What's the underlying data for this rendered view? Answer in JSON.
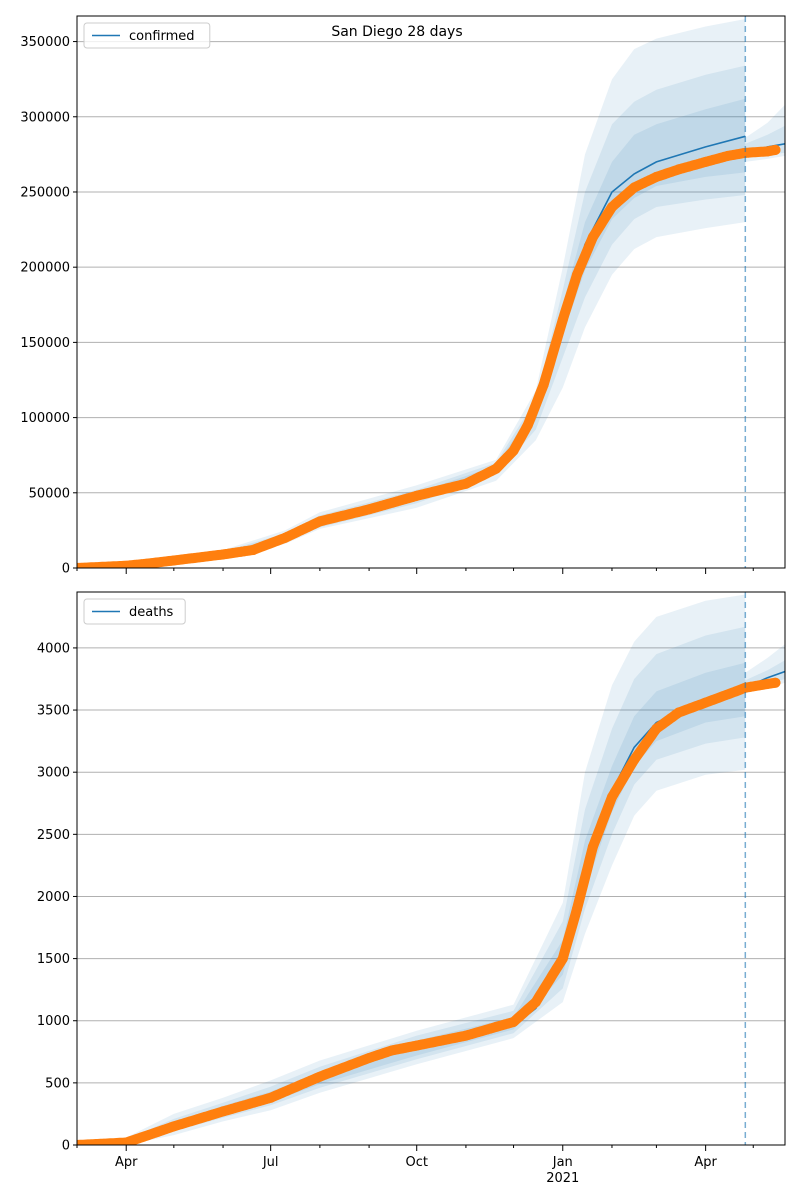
{
  "title": "San Diego 28 days",
  "colors": {
    "model": "#1f77b4",
    "observed": "#ff7f0e",
    "band": "#1f77b4",
    "grid": "#b0b0b0"
  },
  "chart_data": [
    {
      "type": "line",
      "legend": "confirmed",
      "legend_position": "top-left",
      "grid": "y",
      "x_range": [
        "2020-03-01",
        "2021-05-21"
      ],
      "x_ticks": [
        {
          "date": "2020-04-01",
          "label": "Apr"
        },
        {
          "date": "2020-07-01",
          "label": "Jul"
        },
        {
          "date": "2020-10-01",
          "label": "Oct"
        },
        {
          "date": "2021-01-01",
          "label": "Jan"
        },
        {
          "date": "2021-04-01",
          "label": "Apr"
        }
      ],
      "x_ticks_shown": false,
      "forecast_start": "2021-04-26",
      "ylim": [
        0,
        367000
      ],
      "yticks": [
        0,
        50000,
        100000,
        150000,
        200000,
        250000,
        300000,
        350000
      ],
      "model": {
        "x": [
          "2020-03-01",
          "2020-04-01",
          "2020-05-01",
          "2020-06-01",
          "2020-06-20",
          "2020-07-10",
          "2020-08-01",
          "2020-09-01",
          "2020-10-01",
          "2020-11-01",
          "2020-11-20",
          "2020-12-01",
          "2020-12-15",
          "2021-01-01",
          "2021-01-15",
          "2021-02-01",
          "2021-02-15",
          "2021-03-01",
          "2021-04-01",
          "2021-04-26"
        ],
        "y": [
          0,
          1500,
          5000,
          9000,
          12000,
          20000,
          31000,
          40000,
          48000,
          57000,
          67000,
          80000,
          105000,
          165000,
          215000,
          250000,
          262000,
          270000,
          280000,
          287000
        ]
      },
      "forecast": {
        "x": [
          "2021-04-26",
          "2021-05-10",
          "2021-05-21"
        ],
        "y": [
          276000,
          280000,
          282000
        ]
      },
      "bands": [
        {
          "x": [
            "2020-03-01",
            "2020-06-01",
            "2020-07-10",
            "2020-08-01",
            "2020-10-01",
            "2020-11-20",
            "2020-12-15",
            "2021-01-01",
            "2021-01-15",
            "2021-02-01",
            "2021-02-15",
            "2021-03-01",
            "2021-04-01",
            "2021-04-26"
          ],
          "upper": [
            500,
            12000,
            25000,
            37000,
            55000,
            72000,
            118000,
            200000,
            275000,
            325000,
            345000,
            352000,
            360000,
            365000
          ],
          "lower": [
            0,
            6000,
            16000,
            26000,
            40000,
            58000,
            85000,
            120000,
            160000,
            195000,
            212000,
            220000,
            226000,
            230000
          ]
        },
        {
          "x": [
            "2020-03-01",
            "2020-06-01",
            "2020-07-10",
            "2020-08-01",
            "2020-10-01",
            "2020-11-20",
            "2020-12-15",
            "2021-01-01",
            "2021-01-15",
            "2021-02-01",
            "2021-02-15",
            "2021-03-01",
            "2021-04-01",
            "2021-04-26"
          ],
          "upper": [
            300,
            11000,
            23000,
            35000,
            52000,
            70000,
            112000,
            185000,
            250000,
            295000,
            310000,
            318000,
            328000,
            334000
          ],
          "lower": [
            0,
            7000,
            17000,
            27000,
            43000,
            62000,
            92000,
            140000,
            180000,
            215000,
            232000,
            240000,
            245000,
            248000
          ]
        },
        {
          "x": [
            "2020-03-01",
            "2020-06-01",
            "2020-07-10",
            "2020-08-01",
            "2020-10-01",
            "2020-11-20",
            "2020-12-15",
            "2021-01-01",
            "2021-01-15",
            "2021-02-01",
            "2021-02-15",
            "2021-03-01",
            "2021-04-01",
            "2021-04-26"
          ],
          "upper": [
            200,
            10000,
            22000,
            33000,
            50000,
            68000,
            108000,
            175000,
            230000,
            270000,
            288000,
            295000,
            305000,
            312000
          ],
          "lower": [
            0,
            8000,
            18000,
            29000,
            45000,
            64000,
            98000,
            155000,
            198000,
            232000,
            246000,
            254000,
            260000,
            263000
          ]
        }
      ],
      "forecast_bands": [
        {
          "x": [
            "2021-04-26",
            "2021-05-10",
            "2021-05-21"
          ],
          "upper": [
            286000,
            296000,
            308000
          ],
          "lower": [
            270000,
            272000,
            274000
          ]
        },
        {
          "x": [
            "2021-04-26",
            "2021-05-10",
            "2021-05-21"
          ],
          "upper": [
            282000,
            288000,
            294000
          ],
          "lower": [
            273000,
            275000,
            276000
          ]
        }
      ],
      "observed": {
        "x": [
          "2020-03-01",
          "2020-04-01",
          "2020-04-15",
          "2020-05-01",
          "2020-06-01",
          "2020-06-20",
          "2020-07-10",
          "2020-08-01",
          "2020-09-01",
          "2020-10-01",
          "2020-11-01",
          "2020-11-20",
          "2020-12-01",
          "2020-12-10",
          "2020-12-20",
          "2021-01-01",
          "2021-01-10",
          "2021-01-20",
          "2021-02-01",
          "2021-02-15",
          "2021-03-01",
          "2021-03-15",
          "2021-04-01",
          "2021-04-15",
          "2021-04-26",
          "2021-05-10",
          "2021-05-15"
        ],
        "y": [
          0,
          1500,
          3000,
          5000,
          9000,
          12000,
          20000,
          31000,
          39000,
          48000,
          56000,
          66000,
          78000,
          95000,
          122000,
          165000,
          195000,
          220000,
          240000,
          253000,
          260000,
          265000,
          270000,
          274000,
          276000,
          277000,
          278000
        ]
      }
    },
    {
      "type": "line",
      "legend": "deaths",
      "legend_position": "top-left",
      "grid": "y",
      "x_range": [
        "2020-03-01",
        "2021-05-21"
      ],
      "x_ticks": [
        {
          "date": "2020-04-01",
          "label": "Apr"
        },
        {
          "date": "2020-07-01",
          "label": "Jul"
        },
        {
          "date": "2020-10-01",
          "label": "Oct"
        },
        {
          "date": "2021-01-01",
          "label": "Jan"
        },
        {
          "date": "2021-04-01",
          "label": "Apr"
        }
      ],
      "x_ticks_shown": true,
      "year_label": {
        "date": "2021-01-01",
        "label": "2021"
      },
      "forecast_start": "2021-04-26",
      "ylim": [
        0,
        4450
      ],
      "yticks": [
        0,
        500,
        1000,
        1500,
        2000,
        2500,
        3000,
        3500,
        4000
      ],
      "model": {
        "x": [
          "2020-03-01",
          "2020-04-01",
          "2020-05-01",
          "2020-06-01",
          "2020-07-01",
          "2020-08-01",
          "2020-09-01",
          "2020-10-01",
          "2020-11-01",
          "2020-12-01",
          "2020-12-15",
          "2021-01-01",
          "2021-01-15",
          "2021-02-01",
          "2021-02-15",
          "2021-03-01",
          "2021-04-01",
          "2021-04-26"
        ],
        "y": [
          0,
          20,
          150,
          280,
          380,
          530,
          680,
          780,
          870,
          960,
          1100,
          1500,
          2200,
          2850,
          3200,
          3400,
          3580,
          3680
        ]
      },
      "forecast": {
        "x": [
          "2021-04-26",
          "2021-05-10",
          "2021-05-21"
        ],
        "y": [
          3680,
          3760,
          3810
        ]
      },
      "bands": [
        {
          "x": [
            "2020-03-01",
            "2020-04-01",
            "2020-05-01",
            "2020-06-01",
            "2020-07-01",
            "2020-08-01",
            "2020-10-01",
            "2020-12-01",
            "2021-01-01",
            "2021-01-15",
            "2021-02-01",
            "2021-02-15",
            "2021-03-01",
            "2021-04-01",
            "2021-04-26"
          ],
          "upper": [
            20,
            60,
            250,
            380,
            520,
            680,
            920,
            1130,
            1950,
            3000,
            3700,
            4050,
            4250,
            4380,
            4430
          ],
          "lower": [
            0,
            0,
            80,
            190,
            280,
            420,
            650,
            860,
            1150,
            1700,
            2250,
            2650,
            2850,
            2980,
            3020
          ]
        },
        {
          "x": [
            "2020-03-01",
            "2020-04-01",
            "2020-05-01",
            "2020-06-01",
            "2020-07-01",
            "2020-08-01",
            "2020-10-01",
            "2020-12-01",
            "2021-01-01",
            "2021-01-15",
            "2021-02-01",
            "2021-02-15",
            "2021-03-01",
            "2021-04-01",
            "2021-04-26"
          ],
          "upper": [
            10,
            45,
            210,
            340,
            470,
            630,
            880,
            1080,
            1800,
            2700,
            3350,
            3750,
            3950,
            4100,
            4170
          ],
          "lower": [
            0,
            5,
            110,
            220,
            320,
            460,
            690,
            900,
            1260,
            1900,
            2500,
            2900,
            3100,
            3230,
            3280
          ]
        },
        {
          "x": [
            "2020-03-01",
            "2020-04-01",
            "2020-05-01",
            "2020-06-01",
            "2020-07-01",
            "2020-08-01",
            "2020-10-01",
            "2020-12-01",
            "2021-01-01",
            "2021-01-15",
            "2021-02-01",
            "2021-02-15",
            "2021-03-01",
            "2021-04-01",
            "2021-04-26"
          ],
          "upper": [
            5,
            35,
            185,
            315,
            430,
            590,
            840,
            1030,
            1650,
            2450,
            3050,
            3450,
            3650,
            3800,
            3880
          ],
          "lower": [
            0,
            10,
            125,
            245,
            345,
            490,
            720,
            930,
            1370,
            2050,
            2680,
            3050,
            3250,
            3400,
            3450
          ]
        }
      ],
      "forecast_bands": [
        {
          "x": [
            "2021-04-26",
            "2021-05-10",
            "2021-05-21"
          ],
          "upper": [
            3800,
            3920,
            4030
          ],
          "lower": [
            3640,
            3680,
            3720
          ]
        },
        {
          "x": [
            "2021-04-26",
            "2021-05-10",
            "2021-05-21"
          ],
          "upper": [
            3740,
            3820,
            3900
          ],
          "lower": [
            3670,
            3710,
            3750
          ]
        }
      ],
      "observed": {
        "x": [
          "2020-03-01",
          "2020-04-01",
          "2020-04-15",
          "2020-05-01",
          "2020-06-01",
          "2020-07-01",
          "2020-08-01",
          "2020-09-01",
          "2020-09-15",
          "2020-10-01",
          "2020-11-01",
          "2020-11-20",
          "2020-12-01",
          "2020-12-15",
          "2021-01-01",
          "2021-01-10",
          "2021-01-20",
          "2021-02-01",
          "2021-02-15",
          "2021-03-01",
          "2021-03-15",
          "2021-04-01",
          "2021-04-20",
          "2021-04-26",
          "2021-05-10",
          "2021-05-15"
        ],
        "y": [
          0,
          20,
          80,
          150,
          270,
          380,
          550,
          700,
          760,
          800,
          880,
          950,
          990,
          1150,
          1500,
          1900,
          2400,
          2800,
          3100,
          3350,
          3480,
          3560,
          3650,
          3680,
          3710,
          3720
        ]
      }
    }
  ]
}
